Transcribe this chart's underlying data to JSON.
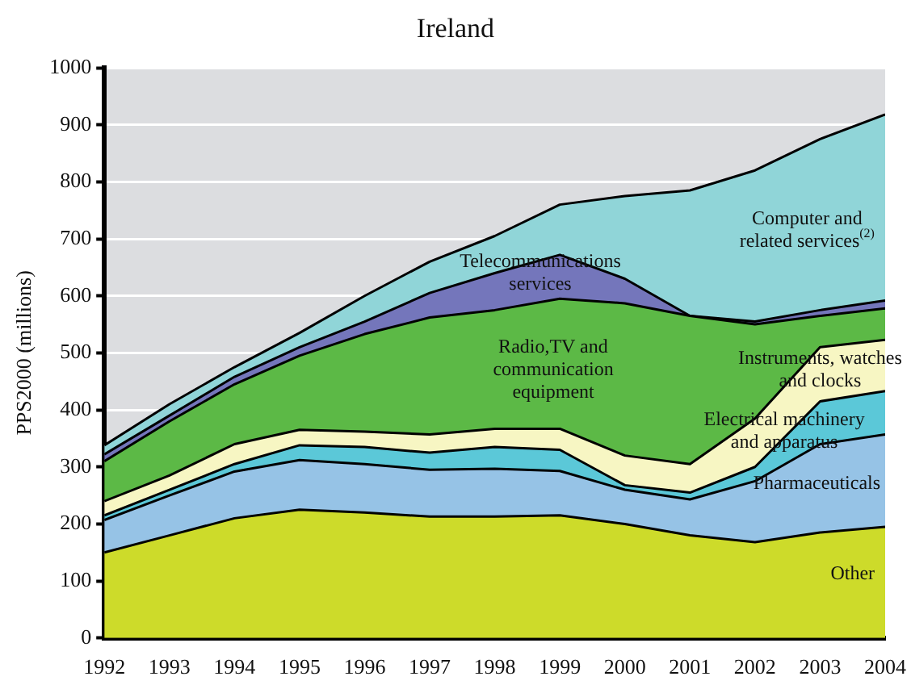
{
  "chart_data": {
    "type": "area",
    "title": "Ireland",
    "ylabel": "PPS2000 (millions)",
    "stacked": true,
    "x": [
      1992,
      1993,
      1994,
      1995,
      1996,
      1997,
      1998,
      1999,
      2000,
      2001,
      2002,
      2003,
      2004
    ],
    "xlim": [
      1992,
      2004
    ],
    "xticks": [
      1992,
      1993,
      1994,
      1995,
      1996,
      1997,
      1998,
      1999,
      2000,
      2001,
      2002,
      2003,
      2004
    ],
    "ylim": [
      0,
      1000
    ],
    "yticks": [
      0,
      100,
      200,
      300,
      400,
      500,
      600,
      700,
      800,
      900,
      1000
    ],
    "grid": "y",
    "legend": false,
    "series": [
      {
        "name": "Other",
        "color": "#cddb2a",
        "values": [
          150,
          180,
          210,
          225,
          220,
          213,
          213,
          215,
          200,
          180,
          168,
          185,
          195
        ]
      },
      {
        "name": "Pharmaceuticals",
        "color": "#96c3e6",
        "values": [
          57,
          70,
          82,
          87,
          85,
          82,
          84,
          78,
          60,
          63,
          107,
          155,
          162
        ]
      },
      {
        "name": "Electrical machinery and apparatus",
        "color": "#5bc8d8",
        "values": [
          8,
          10,
          13,
          26,
          30,
          30,
          38,
          37,
          8,
          12,
          25,
          75,
          76
        ]
      },
      {
        "name": "Instruments, watches and clocks",
        "color": "#f7f6c3",
        "values": [
          25,
          25,
          35,
          27,
          27,
          32,
          32,
          37,
          52,
          50,
          85,
          95,
          90
        ]
      },
      {
        "name": "Radio,TV and communication equipment",
        "color": "#5cb946",
        "values": [
          70,
          95,
          105,
          130,
          171,
          205,
          208,
          228,
          267,
          260,
          165,
          55,
          55
        ]
      },
      {
        "name": "Telecommunications services",
        "color": "#7476bb",
        "values": [
          12,
          10,
          13,
          15,
          22,
          43,
          65,
          77,
          43,
          0,
          5,
          10,
          14
        ]
      },
      {
        "name": "Computer and related services$^{(2)}$",
        "color": "#90d5d8",
        "values": [
          16,
          20,
          17,
          25,
          45,
          55,
          65,
          88,
          145,
          220,
          265,
          300,
          326
        ]
      }
    ]
  }
}
